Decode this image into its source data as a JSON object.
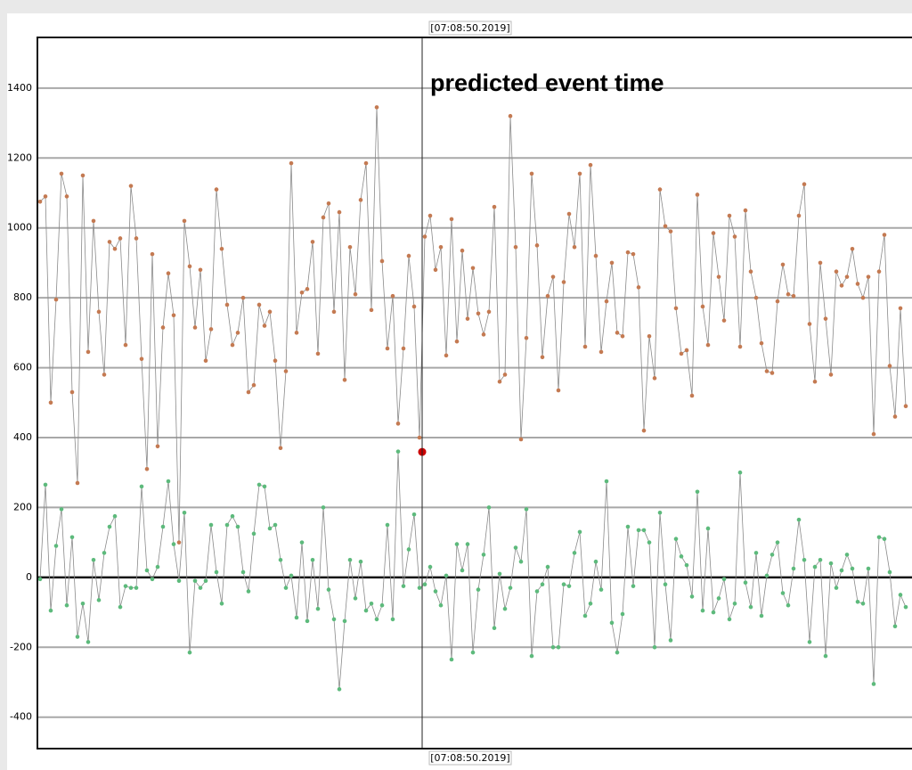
{
  "chart_data": {
    "type": "line",
    "cursor_label": "[07:08:50.2019]",
    "annotation": "predicted event time",
    "event_marker": {
      "value": 359,
      "color": "#cc0000"
    },
    "ylim": [
      -490,
      1545
    ],
    "yticks": [
      -400,
      -200,
      0,
      200,
      400,
      600,
      800,
      1000,
      1200,
      1400
    ],
    "grid": true,
    "series": [
      {
        "color": "#c47a52",
        "values": [
          1075,
          1090,
          500,
          795,
          1155,
          1090,
          530,
          270,
          1150,
          645,
          1020,
          760,
          580,
          960,
          940,
          970,
          665,
          1120,
          970,
          625,
          310,
          925,
          375,
          715,
          870,
          750,
          100,
          1020,
          890,
          715,
          880,
          620,
          710,
          1110,
          940,
          780,
          665,
          700,
          800,
          530,
          550,
          780,
          720,
          760,
          620,
          370,
          590,
          1185,
          700,
          815,
          825,
          960,
          640,
          1030,
          1070,
          760,
          1045,
          565,
          945,
          810,
          1080,
          1185,
          765,
          1345,
          905,
          655,
          805,
          440,
          655,
          920,
          775,
          400,
          975,
          1035,
          880,
          945,
          635,
          1025,
          675,
          935,
          740,
          885,
          755,
          695,
          760,
          1060,
          560,
          580,
          1320,
          945,
          395,
          685,
          1155,
          950,
          630,
          805,
          860,
          535,
          845,
          1040,
          945,
          1155,
          660,
          1180,
          920,
          645,
          790,
          900,
          700,
          690,
          930,
          925,
          830,
          420,
          690,
          570,
          1110,
          1005,
          990,
          770,
          640,
          650,
          520,
          1095,
          775,
          665,
          985,
          860,
          735,
          1035,
          975,
          660,
          1050,
          875,
          800,
          670,
          590,
          585,
          790,
          895,
          810,
          805,
          1035,
          1125,
          725,
          560,
          900,
          740,
          580,
          875,
          835,
          860,
          940,
          840,
          800,
          860,
          410,
          875,
          980,
          605,
          460,
          770,
          490
        ]
      },
      {
        "color": "#5dba7c",
        "values": [
          -5,
          265,
          -95,
          90,
          195,
          -80,
          115,
          -170,
          -75,
          -185,
          50,
          -65,
          70,
          145,
          175,
          -85,
          -25,
          -30,
          -30,
          260,
          20,
          -5,
          30,
          145,
          275,
          95,
          -10,
          185,
          -215,
          -10,
          -30,
          -10,
          150,
          15,
          -75,
          150,
          175,
          145,
          15,
          -40,
          125,
          265,
          260,
          140,
          150,
          50,
          -30,
          5,
          -115,
          100,
          -125,
          50,
          -90,
          200,
          -35,
          -120,
          -320,
          -125,
          50,
          -60,
          45,
          -95,
          -75,
          -120,
          -80,
          150,
          -120,
          360,
          -25,
          80,
          180,
          -30,
          -20,
          30,
          -40,
          -80,
          5,
          -235,
          95,
          20,
          95,
          -215,
          -35,
          65,
          200,
          -145,
          10,
          -90,
          -30,
          85,
          45,
          195,
          -225,
          -40,
          -20,
          30,
          -200,
          -200,
          -20,
          -25,
          70,
          130,
          -110,
          -75,
          45,
          -35,
          275,
          -130,
          -215,
          -105,
          145,
          -25,
          135,
          135,
          100,
          -200,
          185,
          -20,
          -180,
          110,
          60,
          35,
          -55,
          245,
          -95,
          140,
          -100,
          -60,
          -5,
          -120,
          -75,
          300,
          -15,
          -85,
          70,
          -110,
          5,
          65,
          100,
          -45,
          -80,
          25,
          165,
          50,
          -185,
          30,
          50,
          -225,
          40,
          -30,
          20,
          65,
          25,
          -70,
          -75,
          25,
          -305,
          115,
          110,
          15,
          -140,
          -50,
          -85
        ]
      }
    ]
  }
}
